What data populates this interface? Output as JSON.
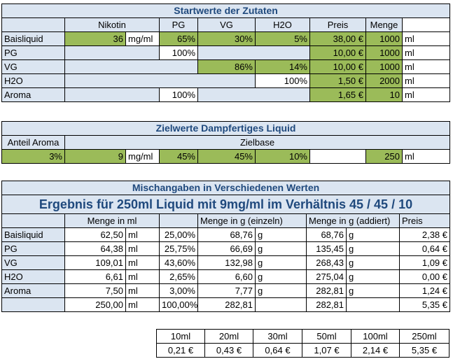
{
  "start": {
    "title": "Startwerte der Zutaten",
    "headers": [
      "Nikotin",
      "PG",
      "VG",
      "H2O",
      "Preis",
      "Menge"
    ],
    "rows": [
      {
        "name": "Baisliquid",
        "nik": "36",
        "nik_unit": "mg/ml",
        "pg": "65%",
        "vg": "30%",
        "h2o": "5%",
        "preis": "38,00 €",
        "menge": "1000",
        "unit": "ml"
      },
      {
        "name": "PG",
        "nik": "",
        "nik_unit": "",
        "pg": "100%",
        "vg": "",
        "h2o": "",
        "preis": "10,00 €",
        "menge": "1000",
        "unit": "ml"
      },
      {
        "name": "VG",
        "nik": "",
        "nik_unit": "",
        "pg": "",
        "vg": "86%",
        "h2o": "14%",
        "preis": "10,00 €",
        "menge": "1000",
        "unit": "ml"
      },
      {
        "name": "H2O",
        "nik": "",
        "nik_unit": "",
        "pg": "",
        "vg": "",
        "h2o": "100%",
        "preis": "1,50 €",
        "menge": "2000",
        "unit": "ml"
      },
      {
        "name": "Aroma",
        "nik": "",
        "nik_unit": "",
        "pg": "100%",
        "vg": "",
        "h2o": "",
        "preis": "1,65 €",
        "menge": "10",
        "unit": "ml"
      }
    ]
  },
  "ziel": {
    "title": "Zielwerte Dampfertiges Liquid",
    "anteil_label": "Anteil Aroma",
    "zielbase_label": "Zielbase",
    "aroma": "3%",
    "nik": "9",
    "nik_unit": "mg/ml",
    "pg": "45%",
    "vg": "45%",
    "h2o": "10%",
    "menge": "250",
    "unit": "ml"
  },
  "misch": {
    "title": "Mischangaben in Verschiedenen Werten",
    "result": "Ergebnis für 250ml Liquid mit 9mg/ml im Verhältnis 45 / 45 / 10",
    "headers": {
      "menge_ml": "Menge in ml",
      "menge_g": "Menge in g (einzeln)",
      "menge_g_add": "Menge in g (addiert)",
      "preis": "Preis"
    },
    "rows": [
      {
        "name": "Baisliquid",
        "ml": "62,50",
        "ml_u": "ml",
        "pct": "25,00%",
        "g": "68,76",
        "g_u": "g",
        "ga": "68,76",
        "ga_u": "g",
        "preis": "2,38 €"
      },
      {
        "name": "PG",
        "ml": "64,38",
        "ml_u": "ml",
        "pct": "25,75%",
        "g": "66,69",
        "g_u": "g",
        "ga": "135,45",
        "ga_u": "g",
        "preis": "0,64 €"
      },
      {
        "name": "VG",
        "ml": "109,01",
        "ml_u": "ml",
        "pct": "43,60%",
        "g": "132,98",
        "g_u": "g",
        "ga": "268,43",
        "ga_u": "g",
        "preis": "1,09 €"
      },
      {
        "name": "H2O",
        "ml": "6,61",
        "ml_u": "ml",
        "pct": "2,65%",
        "g": "6,60",
        "g_u": "g",
        "ga": "275,04",
        "ga_u": "g",
        "preis": "0,00 €"
      },
      {
        "name": "Aroma",
        "ml": "7,50",
        "ml_u": "ml",
        "pct": "3,00%",
        "g": "7,77",
        "g_u": "g",
        "ga": "282,81",
        "ga_u": "g",
        "preis": "1,24 €"
      },
      {
        "name": "",
        "ml": "250,00",
        "ml_u": "ml",
        "pct": "100,00%",
        "g": "282,81",
        "g_u": "",
        "ga": "282,81",
        "ga_u": "",
        "preis": "5,35 €"
      }
    ]
  },
  "prices": {
    "sizes": [
      "10ml",
      "20ml",
      "30ml",
      "50ml",
      "100ml",
      "250ml"
    ],
    "values": [
      "0,21 €",
      "0,43 €",
      "0,64 €",
      "1,07 €",
      "2,14 €",
      "5,35 €"
    ]
  }
}
